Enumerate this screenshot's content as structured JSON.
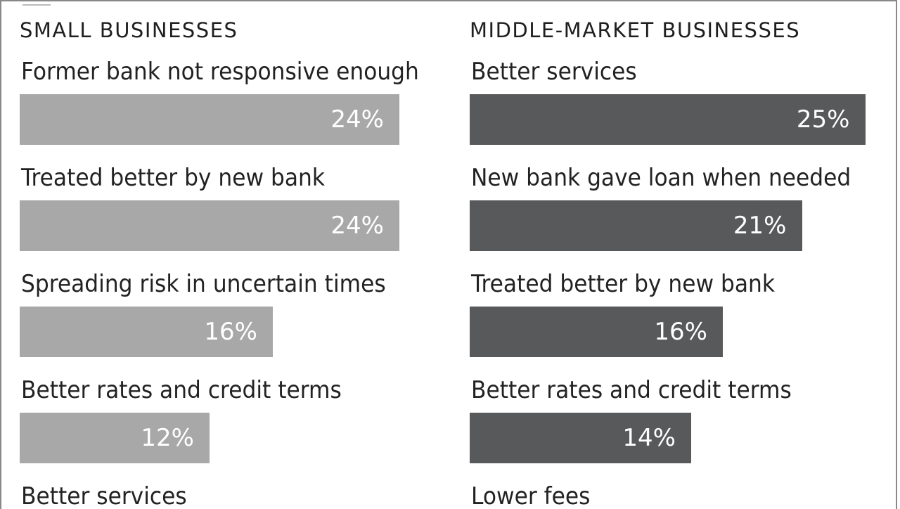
{
  "colors": {
    "small_bar": "#a8a8a8",
    "middle_bar": "#58595b",
    "text": "#1f1f1f",
    "value_text": "#ffffff"
  },
  "chart_data": [
    {
      "type": "bar",
      "orientation": "horizontal",
      "title": "SMALL BUSINESSES",
      "categories": [
        "Former bank not responsive enough",
        "Treated better by new bank",
        "Spreading risk in uncertain times",
        "Better rates and credit terms",
        "Better services"
      ],
      "values": [
        24,
        24,
        16,
        12,
        null
      ],
      "value_labels": [
        "24%",
        "24%",
        "16%",
        "12%",
        ""
      ],
      "unit": "%",
      "xlim": [
        0,
        28
      ]
    },
    {
      "type": "bar",
      "orientation": "horizontal",
      "title": "MIDDLE-MARKET BUSINESSES",
      "categories": [
        "Better services",
        "New bank gave loan when needed",
        "Treated better by new bank",
        "Better rates and credit terms",
        "Lower fees"
      ],
      "values": [
        25,
        21,
        16,
        14,
        null
      ],
      "value_labels": [
        "25%",
        "21%",
        "16%",
        "14%",
        ""
      ],
      "unit": "%",
      "xlim": [
        0,
        28
      ]
    }
  ]
}
